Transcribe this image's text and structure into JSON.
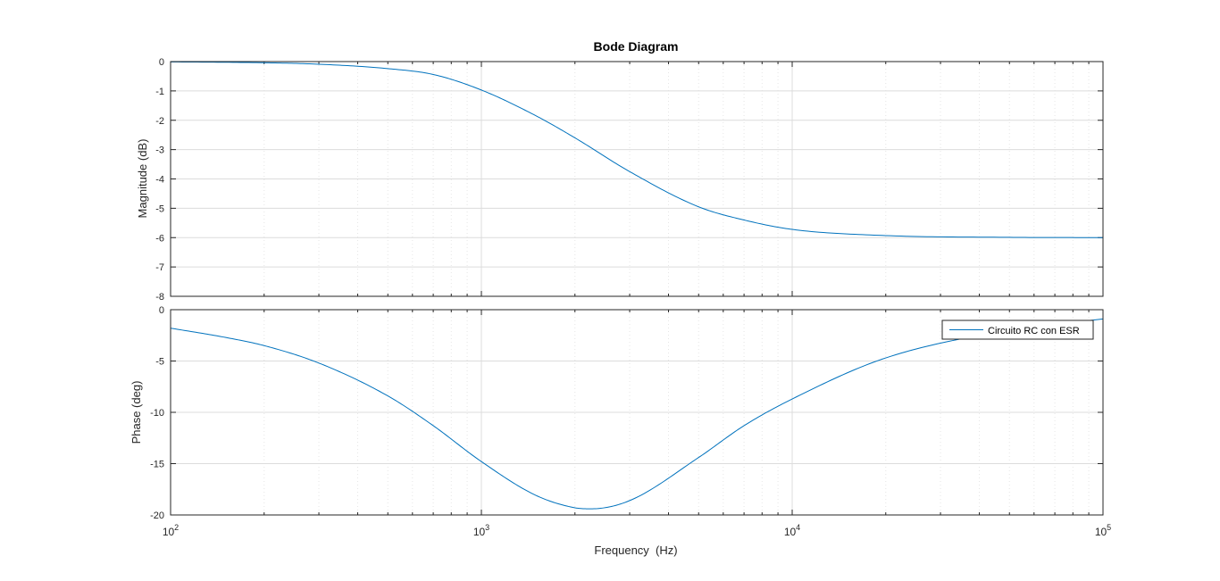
{
  "figure": {
    "title": "Bode Diagram",
    "xlabel": "Frequency  (Hz)"
  },
  "chart_data": [
    {
      "type": "line",
      "name": "magnitude",
      "title": "Bode Diagram",
      "ylabel": "Magnitude (dB)",
      "xscale": "log",
      "xlim": [
        100,
        100000
      ],
      "ylim": [
        -8,
        0
      ],
      "yticks": [
        "0",
        "-1",
        "-2",
        "-3",
        "-4",
        "-5",
        "-6",
        "-7",
        "-8"
      ],
      "grid": true,
      "line_color": "#0072BD",
      "series": [
        {
          "x": [
            100,
            200,
            300,
            500,
            700,
            1000,
            1500,
            2000,
            3000,
            5000,
            7000,
            10000,
            20000,
            50000,
            100000
          ],
          "values": [
            -0.01,
            -0.04,
            -0.09,
            -0.24,
            -0.44,
            -0.97,
            -1.85,
            -2.6,
            -3.75,
            -4.95,
            -5.4,
            -5.72,
            -5.93,
            -5.99,
            -6.0
          ]
        }
      ]
    },
    {
      "type": "line",
      "name": "phase",
      "ylabel": "Phase (deg)",
      "xscale": "log",
      "xlim": [
        100,
        100000
      ],
      "ylim": [
        -20,
        0
      ],
      "yticks": [
        "0",
        "-5",
        "-10",
        "-15",
        "-20"
      ],
      "xticks": [
        {
          "base": "10",
          "exp": "2"
        },
        {
          "base": "10",
          "exp": "3"
        },
        {
          "base": "10",
          "exp": "4"
        },
        {
          "base": "10",
          "exp": "5"
        }
      ],
      "grid": true,
      "legend": {
        "placement": "top-right",
        "entries": [
          "Circuito RC con ESR"
        ]
      },
      "line_color": "#0072BD",
      "series": [
        {
          "name": "Circuito RC con ESR",
          "x": [
            100,
            150,
            200,
            300,
            500,
            700,
            1000,
            1500,
            2000,
            2250,
            3000,
            5000,
            7000,
            10000,
            20000,
            50000,
            100000
          ],
          "values": [
            -1.8,
            -2.7,
            -3.5,
            -5.2,
            -8.4,
            -11.3,
            -14.8,
            -18.1,
            -19.3,
            -19.4,
            -18.6,
            -14.4,
            -11.3,
            -8.7,
            -4.7,
            -2.0,
            -0.9
          ]
        }
      ]
    }
  ]
}
